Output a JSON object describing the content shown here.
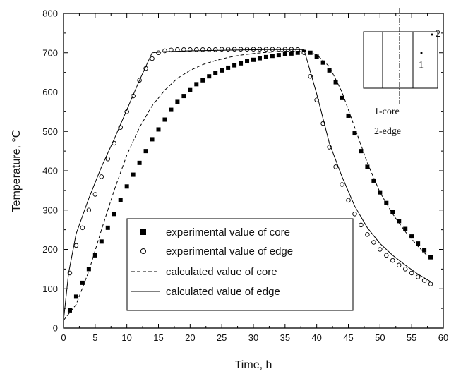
{
  "chart_data": {
    "type": "scatter",
    "xlabel": "Time, h",
    "ylabel_main": "Temperature,",
    "ylabel_unit": "°C",
    "xlim": [
      0,
      60
    ],
    "ylim": [
      0,
      800
    ],
    "xticks": [
      "0",
      "5",
      "10",
      "15",
      "20",
      "25",
      "30",
      "35",
      "40",
      "45",
      "50",
      "55",
      "60"
    ],
    "yticks": [
      "0",
      "100",
      "200",
      "300",
      "400",
      "500",
      "600",
      "700",
      "800"
    ],
    "grid": false,
    "legend_position": "bottom-center",
    "series": [
      {
        "name": "experimental value of core",
        "marker": "filled-square",
        "points": [
          [
            1,
            45
          ],
          [
            2,
            80
          ],
          [
            3,
            115
          ],
          [
            4,
            150
          ],
          [
            5,
            185
          ],
          [
            6,
            220
          ],
          [
            7,
            255
          ],
          [
            8,
            290
          ],
          [
            9,
            325
          ],
          [
            10,
            360
          ],
          [
            11,
            390
          ],
          [
            12,
            420
          ],
          [
            13,
            450
          ],
          [
            14,
            480
          ],
          [
            15,
            505
          ],
          [
            16,
            530
          ],
          [
            17,
            555
          ],
          [
            18,
            575
          ],
          [
            19,
            590
          ],
          [
            20,
            605
          ],
          [
            21,
            620
          ],
          [
            22,
            630
          ],
          [
            23,
            640
          ],
          [
            24,
            648
          ],
          [
            25,
            655
          ],
          [
            26,
            662
          ],
          [
            27,
            668
          ],
          [
            28,
            673
          ],
          [
            29,
            678
          ],
          [
            30,
            682
          ],
          [
            31,
            686
          ],
          [
            32,
            689
          ],
          [
            33,
            692
          ],
          [
            34,
            694
          ],
          [
            35,
            696
          ],
          [
            36,
            698
          ],
          [
            37,
            700
          ],
          [
            38,
            702
          ],
          [
            39,
            700
          ],
          [
            40,
            690
          ],
          [
            41,
            675
          ],
          [
            42,
            655
          ],
          [
            43,
            625
          ],
          [
            44,
            585
          ],
          [
            45,
            540
          ],
          [
            46,
            495
          ],
          [
            47,
            450
          ],
          [
            48,
            410
          ],
          [
            49,
            375
          ],
          [
            50,
            345
          ],
          [
            51,
            318
          ],
          [
            52,
            295
          ],
          [
            53,
            272
          ],
          [
            54,
            252
          ],
          [
            55,
            233
          ],
          [
            56,
            215
          ],
          [
            57,
            198
          ],
          [
            58,
            180
          ]
        ]
      },
      {
        "name": "experimental value of edge",
        "marker": "open-circle",
        "points": [
          [
            1,
            140
          ],
          [
            2,
            210
          ],
          [
            3,
            255
          ],
          [
            4,
            300
          ],
          [
            5,
            340
          ],
          [
            6,
            385
          ],
          [
            7,
            430
          ],
          [
            8,
            470
          ],
          [
            9,
            510
          ],
          [
            10,
            550
          ],
          [
            11,
            590
          ],
          [
            12,
            630
          ],
          [
            13,
            660
          ],
          [
            14,
            685
          ],
          [
            15,
            700
          ],
          [
            16,
            705
          ],
          [
            17,
            707
          ],
          [
            18,
            708
          ],
          [
            19,
            708
          ],
          [
            20,
            708
          ],
          [
            21,
            708
          ],
          [
            22,
            708
          ],
          [
            23,
            708
          ],
          [
            24,
            708
          ],
          [
            25,
            709
          ],
          [
            26,
            709
          ],
          [
            27,
            709
          ],
          [
            28,
            709
          ],
          [
            29,
            709
          ],
          [
            30,
            709
          ],
          [
            31,
            709
          ],
          [
            32,
            709
          ],
          [
            33,
            709
          ],
          [
            34,
            709
          ],
          [
            35,
            709
          ],
          [
            36,
            709
          ],
          [
            37,
            708
          ],
          [
            38,
            700
          ],
          [
            39,
            640
          ],
          [
            40,
            580
          ],
          [
            41,
            520
          ],
          [
            42,
            460
          ],
          [
            43,
            410
          ],
          [
            44,
            365
          ],
          [
            45,
            325
          ],
          [
            46,
            290
          ],
          [
            47,
            262
          ],
          [
            48,
            238
          ],
          [
            49,
            218
          ],
          [
            50,
            200
          ],
          [
            51,
            185
          ],
          [
            52,
            172
          ],
          [
            53,
            160
          ],
          [
            54,
            150
          ],
          [
            55,
            140
          ],
          [
            56,
            130
          ],
          [
            57,
            121
          ],
          [
            58,
            112
          ]
        ]
      },
      {
        "name": "calculated value of core",
        "style": "dashed",
        "points": [
          [
            0,
            20
          ],
          [
            2,
            60
          ],
          [
            4,
            145
          ],
          [
            6,
            250
          ],
          [
            8,
            350
          ],
          [
            10,
            440
          ],
          [
            12,
            510
          ],
          [
            14,
            565
          ],
          [
            16,
            605
          ],
          [
            18,
            635
          ],
          [
            20,
            655
          ],
          [
            22,
            670
          ],
          [
            24,
            680
          ],
          [
            26,
            688
          ],
          [
            28,
            694
          ],
          [
            30,
            698
          ],
          [
            32,
            701
          ],
          [
            34,
            703
          ],
          [
            36,
            704
          ],
          [
            38,
            704
          ],
          [
            40,
            695
          ],
          [
            42,
            665
          ],
          [
            44,
            600
          ],
          [
            46,
            510
          ],
          [
            48,
            420
          ],
          [
            50,
            345
          ],
          [
            52,
            290
          ],
          [
            54,
            245
          ],
          [
            56,
            208
          ],
          [
            58,
            175
          ]
        ]
      },
      {
        "name": "calculated value of edge",
        "style": "solid",
        "points": [
          [
            0,
            20
          ],
          [
            0.8,
            140
          ],
          [
            2,
            240
          ],
          [
            4,
            330
          ],
          [
            6,
            410
          ],
          [
            8,
            480
          ],
          [
            10,
            555
          ],
          [
            12,
            630
          ],
          [
            14,
            700
          ],
          [
            16,
            703
          ],
          [
            20,
            705
          ],
          [
            24,
            706
          ],
          [
            28,
            707
          ],
          [
            32,
            708
          ],
          [
            36,
            708
          ],
          [
            38,
            708
          ],
          [
            40,
            595
          ],
          [
            42,
            470
          ],
          [
            44,
            385
          ],
          [
            46,
            310
          ],
          [
            48,
            255
          ],
          [
            50,
            215
          ],
          [
            52,
            185
          ],
          [
            54,
            160
          ],
          [
            56,
            137
          ],
          [
            58,
            118
          ]
        ]
      }
    ],
    "inset": {
      "label1": "1",
      "label2": "2",
      "legend1": "1-core",
      "legend2": "2-edge"
    }
  }
}
